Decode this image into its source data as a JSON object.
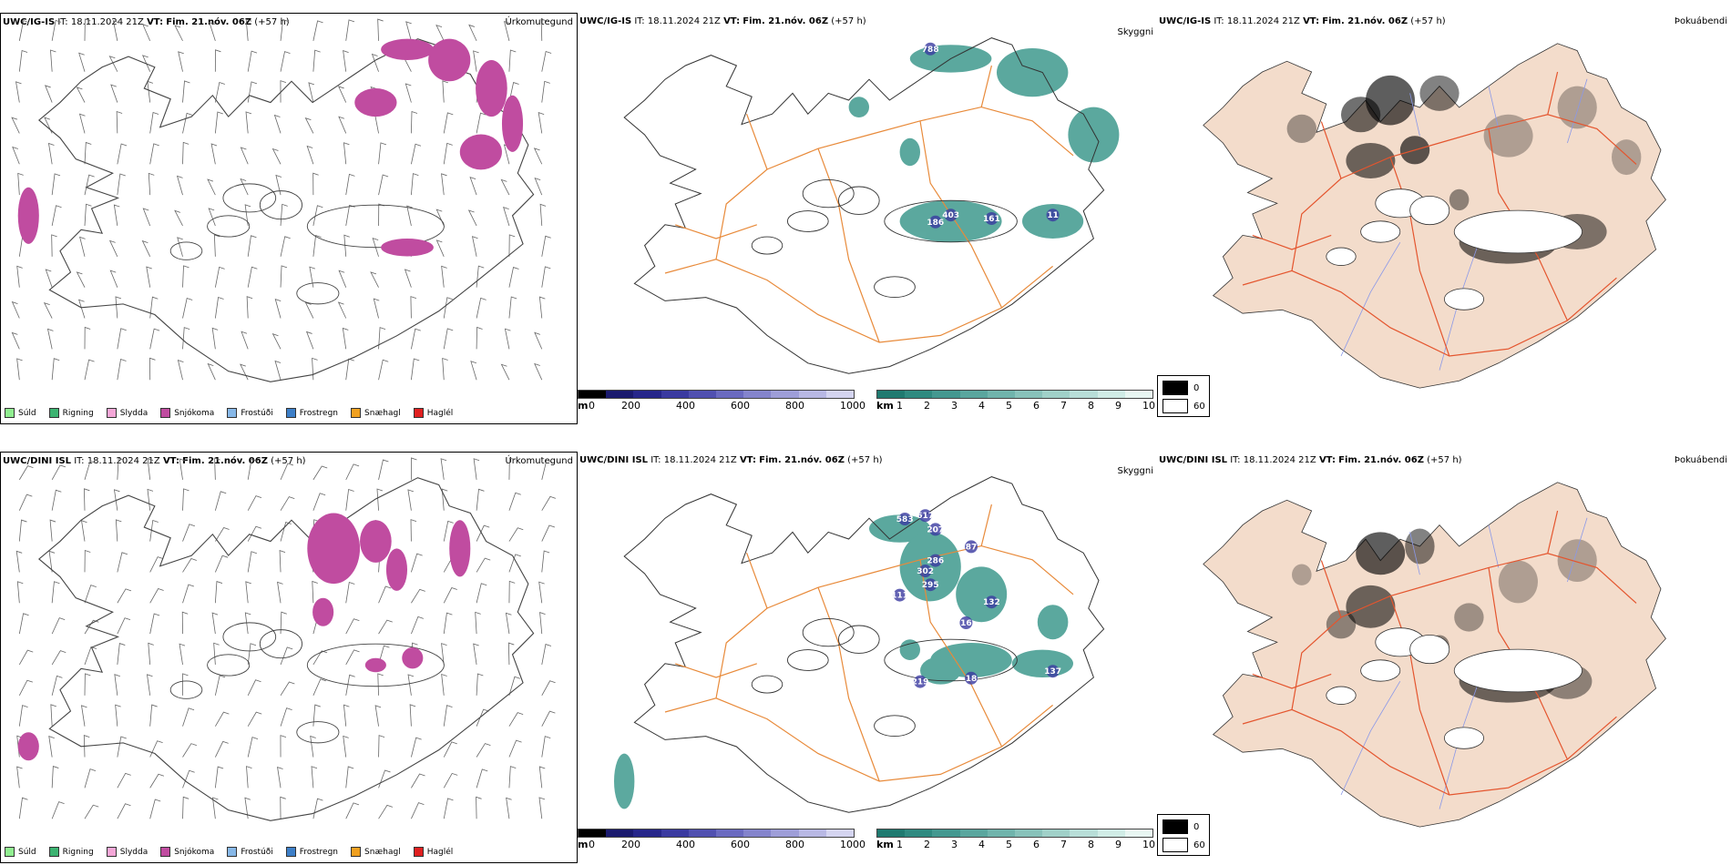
{
  "rows": [
    {
      "model": "UWC/IG-IS",
      "it_label": "IT:",
      "it_value": "18.11.2024 21Z",
      "vt_label": "VT:",
      "vt_value": "Fim. 21.nóv. 06Z",
      "lead": "(+57 h)",
      "precip_title": "Úrkomutegund",
      "vis_title": "Skyggni",
      "fog_title": "Þokuábendi",
      "height_labels": [
        "788",
        "403",
        "186",
        "161",
        "11"
      ]
    },
    {
      "model": "UWC/DINI ISL",
      "it_label": "IT:",
      "it_value": "18.11.2024 21Z",
      "vt_label": "VT:",
      "vt_value": "Fim. 21.nóv. 06Z",
      "lead": "(+57 h)",
      "precip_title": "Úrkomutegund",
      "vis_title": "Skyggni",
      "fog_title": "Þokuábendi",
      "height_labels": [
        "583",
        "617",
        "207",
        "286",
        "302",
        "295",
        "111",
        "87",
        "132",
        "16",
        "219",
        "18",
        "137"
      ]
    }
  ],
  "precip_legend": [
    {
      "label": "Súld",
      "color": "#90ee90"
    },
    {
      "label": "Rigning",
      "color": "#3cb371"
    },
    {
      "label": "Slydda",
      "color": "#f4a6d7"
    },
    {
      "label": "Snjókoma",
      "color": "#c04ca0"
    },
    {
      "label": "Frostúði",
      "color": "#87b8e8"
    },
    {
      "label": "Frostregn",
      "color": "#3d7fc8"
    },
    {
      "label": "Snæhagl",
      "color": "#f0a020"
    },
    {
      "label": "Haglél",
      "color": "#e02020"
    }
  ],
  "height_scale": {
    "unit": "m",
    "ticks": [
      "0",
      "200",
      "400",
      "600",
      "800",
      "1000"
    ],
    "colors": [
      "#000000",
      "#1a1a6e",
      "#26268a",
      "#3a3aa0",
      "#5050b0",
      "#6a6ac0",
      "#8484cc",
      "#9e9ed8",
      "#b8b8e4",
      "#d4d4f0"
    ]
  },
  "vis_scale": {
    "unit": "km",
    "ticks": [
      "1",
      "2",
      "3",
      "4",
      "5",
      "6",
      "7",
      "8",
      "9",
      "10"
    ],
    "colors": [
      "#1f7a70",
      "#2f8a80",
      "#449890",
      "#5aa69e",
      "#70b4ac",
      "#88c2ba",
      "#a0d0c8",
      "#b8ded8",
      "#d0ece6",
      "#e8f6f2"
    ]
  },
  "fog_legend": [
    {
      "value": "0",
      "color": "#000000"
    },
    {
      "value": "60",
      "color": "#ffffff"
    }
  ],
  "colors": {
    "land_fog": "#f3dccb",
    "road": "#e88a3a",
    "road_fog": "#e4552e",
    "river": "#8a98e8",
    "snow": "#c04ca0",
    "vis": "#3f9a8e"
  }
}
